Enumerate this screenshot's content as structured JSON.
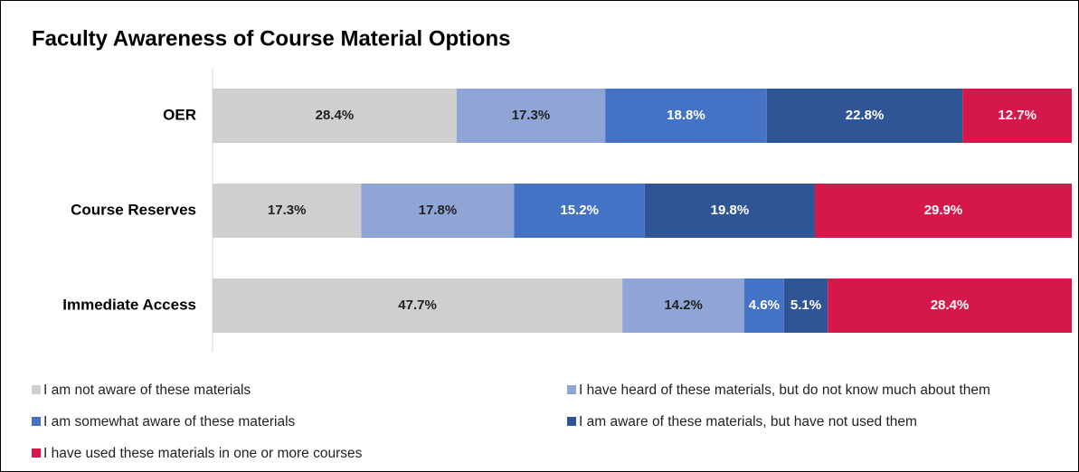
{
  "chart_data": {
    "type": "stacked-bar-horizontal",
    "title": "Faculty Awareness of Course Material Options",
    "categories": [
      "OER",
      "Course Reserves",
      "Immediate Access"
    ],
    "xlim": [
      0,
      100
    ],
    "legend": "bottom",
    "series": [
      {
        "name": "I am not aware of these materials",
        "color": "#d0cfd0",
        "values": [
          28.4,
          17.3,
          47.7
        ],
        "value_labels": [
          "28.4%",
          "17.3%",
          "47.7%"
        ]
      },
      {
        "name": "I have heard of these materials, but do not know much about them",
        "color": "#8fa5d6",
        "values": [
          17.3,
          17.8,
          14.2
        ],
        "value_labels": [
          "17.3%",
          "17.8%",
          "14.2%"
        ]
      },
      {
        "name": "I am somewhat aware of these materials",
        "color": "#4472c4",
        "values": [
          18.8,
          15.2,
          4.6
        ],
        "value_labels": [
          "18.8%",
          "15.2%",
          "4.6%"
        ]
      },
      {
        "name": "I am aware of these materials, but have not used them",
        "color": "#2f5597",
        "values": [
          22.8,
          19.8,
          5.1
        ],
        "value_labels": [
          "22.8%",
          "19.8%",
          "5.1%"
        ]
      },
      {
        "name": "I have used these materials in one or more courses",
        "color": "#d6174a",
        "values": [
          12.7,
          29.9,
          28.4
        ],
        "value_labels": [
          "12.7%",
          "29.9%",
          "28.4%"
        ]
      }
    ]
  }
}
